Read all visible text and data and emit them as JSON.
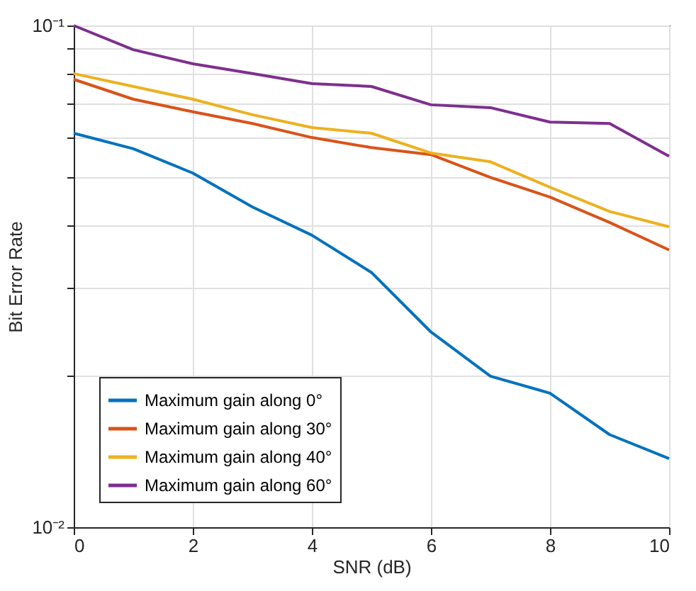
{
  "chart_data": {
    "type": "line",
    "xlabel": "SNR (dB)",
    "ylabel": "Bit Error Rate",
    "x": [
      0,
      1,
      2,
      3,
      4,
      5,
      6,
      7,
      8,
      9,
      10
    ],
    "series": [
      {
        "name": "Maximum gain along 0°",
        "color": "#0072bd",
        "values": [
          0.061,
          0.0568,
          0.0508,
          0.0435,
          0.0382,
          0.0322,
          0.0245,
          0.02,
          0.0185,
          0.0153,
          0.0137
        ]
      },
      {
        "name": "Maximum gain along 30°",
        "color": "#d95319",
        "values": [
          0.0781,
          0.0713,
          0.0673,
          0.0638,
          0.0598,
          0.0571,
          0.0553,
          0.0498,
          0.0455,
          0.0405,
          0.0357
        ]
      },
      {
        "name": "Maximum gain along 40°",
        "color": "#edb120",
        "values": [
          0.0802,
          0.0756,
          0.0713,
          0.0664,
          0.0626,
          0.061,
          0.0557,
          0.0535,
          0.0476,
          0.0426,
          0.0397
        ]
      },
      {
        "name": "Maximum gain along 60°",
        "color": "#7e2f8e",
        "values": [
          0.1,
          0.0895,
          0.0839,
          0.0802,
          0.0766,
          0.0756,
          0.0695,
          0.0686,
          0.0642,
          0.0638,
          0.0549
        ]
      }
    ],
    "log": true,
    "xlim": [
      0,
      10
    ],
    "xticks": [
      0,
      2,
      4,
      6,
      8,
      10
    ],
    "ylim": [
      0.01,
      0.1
    ],
    "yticks": [
      {
        "value": 0.01,
        "label": "10⁻²"
      },
      {
        "value": 0.02,
        "label": null
      },
      {
        "value": 0.03,
        "label": null
      },
      {
        "value": 0.04,
        "label": null
      },
      {
        "value": 0.05,
        "label": null
      },
      {
        "value": 0.06,
        "label": null
      },
      {
        "value": 0.07,
        "label": null
      },
      {
        "value": 0.08,
        "label": null
      },
      {
        "value": 0.09,
        "label": null
      },
      {
        "value": 0.1,
        "label": "10⁻¹"
      }
    ],
    "grid": true,
    "legend": "bottom left",
    "line_style": "solid"
  }
}
